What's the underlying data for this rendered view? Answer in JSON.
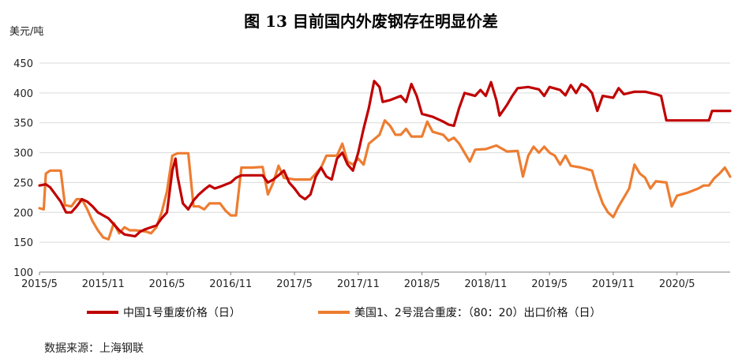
{
  "chart_data": {
    "type": "line",
    "title": "图 13   目前国内外废钢存在明显价差",
    "ylabel": "美元/吨",
    "source": "数据来源：上海钢联",
    "ylim": [
      100,
      450
    ],
    "yticks": [
      "100",
      "150",
      "200",
      "250",
      "300",
      "350",
      "400",
      "450"
    ],
    "xlim": [
      0,
      65
    ],
    "xticks": [
      {
        "x": 0,
        "label": "2015/5"
      },
      {
        "x": 6,
        "label": "2015/11"
      },
      {
        "x": 12,
        "label": "2016/5"
      },
      {
        "x": 18,
        "label": "2016/11"
      },
      {
        "x": 24,
        "label": "2017/5"
      },
      {
        "x": 30,
        "label": "2017/11"
      },
      {
        "x": 36,
        "label": "2018/5"
      },
      {
        "x": 42,
        "label": "2018/11"
      },
      {
        "x": 48,
        "label": "2019/5"
      },
      {
        "x": 54,
        "label": "2019/11"
      },
      {
        "x": 60,
        "label": "2020/5"
      }
    ],
    "grid": "horizontal",
    "legend_position": "bottom",
    "series": [
      {
        "name": "中国1号重废价格（日）",
        "color": "#c00000",
        "points": [
          [
            0,
            245
          ],
          [
            0.6,
            247
          ],
          [
            1,
            242
          ],
          [
            1.5,
            230
          ],
          [
            2,
            218
          ],
          [
            2.5,
            200
          ],
          [
            3,
            200
          ],
          [
            3.5,
            210
          ],
          [
            4,
            222
          ],
          [
            4.5,
            218
          ],
          [
            5,
            210
          ],
          [
            5.5,
            200
          ],
          [
            6,
            195
          ],
          [
            6.5,
            190
          ],
          [
            7,
            180
          ],
          [
            7.5,
            170
          ],
          [
            8,
            163
          ],
          [
            9,
            160
          ],
          [
            9.5,
            168
          ],
          [
            10,
            172
          ],
          [
            11,
            178
          ],
          [
            11.5,
            190
          ],
          [
            12,
            200
          ],
          [
            12.5,
            270
          ],
          [
            12.8,
            290
          ],
          [
            13,
            260
          ],
          [
            13.5,
            215
          ],
          [
            14,
            205
          ],
          [
            14.5,
            220
          ],
          [
            15,
            230
          ],
          [
            15.5,
            238
          ],
          [
            16,
            245
          ],
          [
            16.5,
            240
          ],
          [
            17,
            243
          ],
          [
            18,
            250
          ],
          [
            18.5,
            258
          ],
          [
            19,
            262
          ],
          [
            20,
            262
          ],
          [
            21,
            262
          ],
          [
            21.5,
            250
          ],
          [
            22,
            255
          ],
          [
            22.5,
            262
          ],
          [
            23,
            270
          ],
          [
            23.5,
            250
          ],
          [
            24,
            240
          ],
          [
            24.5,
            228
          ],
          [
            25,
            222
          ],
          [
            25.5,
            230
          ],
          [
            26,
            260
          ],
          [
            26.5,
            275
          ],
          [
            27,
            260
          ],
          [
            27.5,
            255
          ],
          [
            28,
            290
          ],
          [
            28.5,
            300
          ],
          [
            29,
            280
          ],
          [
            29.5,
            270
          ],
          [
            30,
            300
          ],
          [
            30.5,
            340
          ],
          [
            31,
            375
          ],
          [
            31.5,
            420
          ],
          [
            32,
            410
          ],
          [
            32.3,
            385
          ],
          [
            33,
            388
          ],
          [
            34,
            395
          ],
          [
            34.5,
            385
          ],
          [
            35,
            415
          ],
          [
            35.5,
            395
          ],
          [
            36,
            365
          ],
          [
            37,
            360
          ],
          [
            38,
            352
          ],
          [
            38.5,
            347
          ],
          [
            39,
            345
          ],
          [
            39.5,
            375
          ],
          [
            40,
            400
          ],
          [
            41,
            395
          ],
          [
            41.5,
            405
          ],
          [
            42,
            395
          ],
          [
            42.5,
            418
          ],
          [
            43,
            388
          ],
          [
            43.3,
            362
          ],
          [
            44,
            380
          ],
          [
            44.5,
            395
          ],
          [
            45,
            408
          ],
          [
            46,
            410
          ],
          [
            47,
            406
          ],
          [
            47.5,
            395
          ],
          [
            48,
            410
          ],
          [
            49,
            405
          ],
          [
            49.5,
            396
          ],
          [
            50,
            413
          ],
          [
            50.5,
            400
          ],
          [
            51,
            415
          ],
          [
            51.5,
            410
          ],
          [
            52,
            400
          ],
          [
            52.5,
            370
          ],
          [
            53,
            395
          ],
          [
            54,
            392
          ],
          [
            54.5,
            408
          ],
          [
            55,
            398
          ],
          [
            56,
            402
          ],
          [
            57,
            402
          ],
          [
            58,
            398
          ],
          [
            58.5,
            395
          ],
          [
            59,
            354
          ],
          [
            60,
            354
          ],
          [
            61,
            354
          ],
          [
            62,
            354
          ],
          [
            63,
            354
          ],
          [
            63.3,
            370
          ],
          [
            65,
            370
          ]
        ]
      },
      {
        "name": "美国1、2号混合重废：（80：20）出口价格（日）",
        "color": "#ed7d31",
        "points": [
          [
            0,
            207
          ],
          [
            0.4,
            205
          ],
          [
            0.6,
            265
          ],
          [
            1,
            270
          ],
          [
            2,
            270
          ],
          [
            2.4,
            212
          ],
          [
            3,
            210
          ],
          [
            3.5,
            222
          ],
          [
            4,
            222
          ],
          [
            4.5,
            205
          ],
          [
            5,
            185
          ],
          [
            5.5,
            170
          ],
          [
            6,
            158
          ],
          [
            6.5,
            155
          ],
          [
            7,
            182
          ],
          [
            7.5,
            165
          ],
          [
            8,
            175
          ],
          [
            8.5,
            170
          ],
          [
            9,
            170
          ],
          [
            10,
            168
          ],
          [
            10.5,
            165
          ],
          [
            11,
            175
          ],
          [
            11.5,
            200
          ],
          [
            12,
            235
          ],
          [
            12.5,
            295
          ],
          [
            13,
            299
          ],
          [
            14,
            299
          ],
          [
            14.5,
            210
          ],
          [
            15,
            210
          ],
          [
            15.5,
            205
          ],
          [
            16,
            215
          ],
          [
            17,
            215
          ],
          [
            17.5,
            203
          ],
          [
            18,
            195
          ],
          [
            18.5,
            195
          ],
          [
            19,
            275
          ],
          [
            20,
            275
          ],
          [
            21,
            276
          ],
          [
            21.5,
            230
          ],
          [
            22,
            250
          ],
          [
            22.5,
            278
          ],
          [
            23,
            258
          ],
          [
            24,
            255
          ],
          [
            25,
            255
          ],
          [
            25.5,
            255
          ],
          [
            26,
            265
          ],
          [
            26.5,
            275
          ],
          [
            27,
            295
          ],
          [
            28,
            295
          ],
          [
            28.5,
            315
          ],
          [
            29,
            285
          ],
          [
            29.5,
            280
          ],
          [
            30,
            290
          ],
          [
            30.5,
            280
          ],
          [
            31,
            315
          ],
          [
            32,
            330
          ],
          [
            32.5,
            354
          ],
          [
            33,
            345
          ],
          [
            33.5,
            330
          ],
          [
            34,
            330
          ],
          [
            34.5,
            340
          ],
          [
            35,
            327
          ],
          [
            36,
            327
          ],
          [
            36.5,
            352
          ],
          [
            37,
            335
          ],
          [
            38,
            330
          ],
          [
            38.5,
            320
          ],
          [
            39,
            325
          ],
          [
            39.5,
            315
          ],
          [
            40,
            300
          ],
          [
            40.5,
            285
          ],
          [
            41,
            305
          ],
          [
            42,
            306
          ],
          [
            43,
            312
          ],
          [
            44,
            302
          ],
          [
            45,
            303
          ],
          [
            45.5,
            260
          ],
          [
            46,
            295
          ],
          [
            46.5,
            310
          ],
          [
            47,
            300
          ],
          [
            47.5,
            310
          ],
          [
            48,
            300
          ],
          [
            48.5,
            295
          ],
          [
            49,
            280
          ],
          [
            49.5,
            295
          ],
          [
            50,
            278
          ],
          [
            51,
            275
          ],
          [
            52,
            270
          ],
          [
            52.5,
            240
          ],
          [
            53,
            215
          ],
          [
            53.5,
            200
          ],
          [
            54,
            192
          ],
          [
            54.5,
            210
          ],
          [
            55,
            225
          ],
          [
            55.5,
            240
          ],
          [
            56,
            280
          ],
          [
            56.5,
            265
          ],
          [
            57,
            258
          ],
          [
            57.5,
            240
          ],
          [
            58,
            252
          ],
          [
            59,
            250
          ],
          [
            59.5,
            210
          ],
          [
            60,
            228
          ],
          [
            61,
            233
          ],
          [
            62,
            240
          ],
          [
            62.5,
            245
          ],
          [
            63,
            245
          ],
          [
            63.5,
            257
          ],
          [
            64,
            265
          ],
          [
            64.5,
            275
          ],
          [
            65,
            260
          ]
        ]
      }
    ]
  }
}
